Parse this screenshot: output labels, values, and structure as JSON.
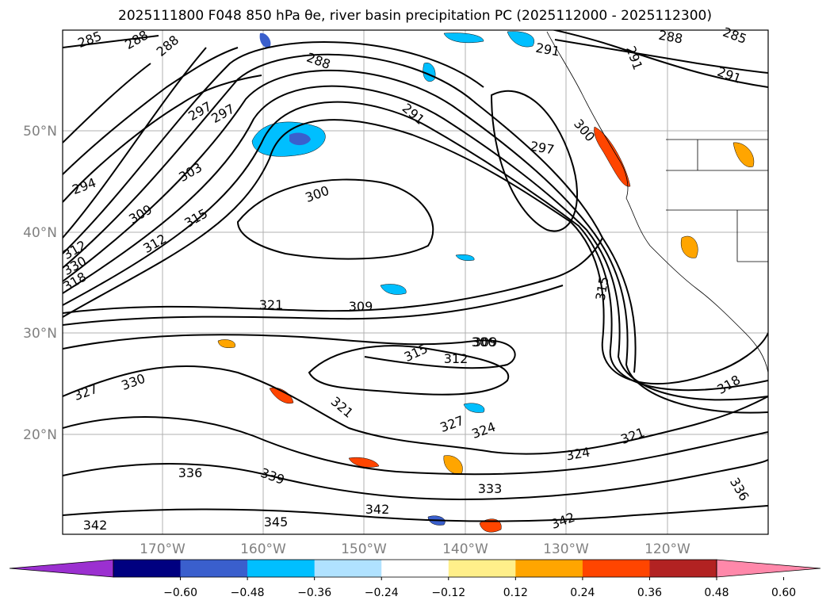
{
  "title": "2025111800 F048 850 hPa θe, river basin precipitation PC (2025112000 - 2025112300)",
  "latitude_labels": [
    "50°N",
    "40°N",
    "30°N",
    "20°N"
  ],
  "longitude_labels": [
    "170°W",
    "160°W",
    "150°W",
    "140°W",
    "130°W",
    "120°W"
  ],
  "contour_labels": [
    "285",
    "288",
    "288",
    "288",
    "291",
    "297",
    "294",
    "303",
    "300",
    "309",
    "315",
    "312",
    "318",
    "330",
    "321",
    "309",
    "312",
    "306",
    "315",
    "315",
    "309",
    "312",
    "327",
    "330",
    "321",
    "327",
    "324",
    "324",
    "321",
    "318",
    "336",
    "339",
    "333",
    "342",
    "345",
    "342",
    "342",
    "336",
    "291",
    "297",
    "300",
    "291",
    "288",
    "285",
    "291",
    "297"
  ],
  "colorbar": {
    "colors": [
      "#9b30d0",
      "#000080",
      "#3a5fcd",
      "#00bfff",
      "#b0e2ff",
      "#ffffff",
      "#ffef8a",
      "#ffa500",
      "#ff4500",
      "#b22222",
      "#ff88aa"
    ],
    "tick_labels": [
      "−0.60",
      "−0.48",
      "−0.36",
      "−0.24",
      "−0.12",
      "0.12",
      "0.24",
      "0.36",
      "0.48",
      "0.60"
    ]
  },
  "colors": {
    "grid": "#b0b0b0",
    "contour": "#000000",
    "label": "#808080"
  }
}
